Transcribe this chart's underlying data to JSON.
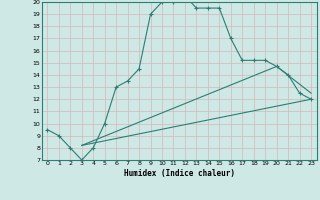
{
  "xlabel": "Humidex (Indice chaleur)",
  "xlim": [
    -0.5,
    23.5
  ],
  "ylim": [
    7,
    20
  ],
  "yticks": [
    7,
    8,
    9,
    10,
    11,
    12,
    13,
    14,
    15,
    16,
    17,
    18,
    19,
    20
  ],
  "xticks": [
    0,
    1,
    2,
    3,
    4,
    5,
    6,
    7,
    8,
    9,
    10,
    11,
    12,
    13,
    14,
    15,
    16,
    17,
    18,
    19,
    20,
    21,
    22,
    23
  ],
  "bg_color": "#cde8e5",
  "grid_color": "#b0d5d0",
  "line_color": "#2e7d72",
  "main_x": [
    0,
    1,
    2,
    3,
    4,
    5,
    6,
    7,
    8,
    9,
    10,
    11,
    12,
    13,
    14,
    15,
    16,
    17,
    18,
    19,
    20,
    21,
    22,
    23
  ],
  "main_y": [
    9.5,
    9.0,
    8.0,
    7.0,
    8.0,
    10.0,
    13.0,
    13.5,
    14.5,
    19.0,
    20.0,
    20.0,
    20.5,
    19.5,
    19.5,
    19.5,
    17.0,
    15.2,
    15.2,
    15.2,
    14.7,
    14.0,
    12.5,
    12.0
  ],
  "line2_x": [
    3,
    20,
    23
  ],
  "line2_y": [
    8.2,
    14.7,
    12.5
  ],
  "line3_x": [
    3,
    23
  ],
  "line3_y": [
    8.2,
    12.0
  ]
}
